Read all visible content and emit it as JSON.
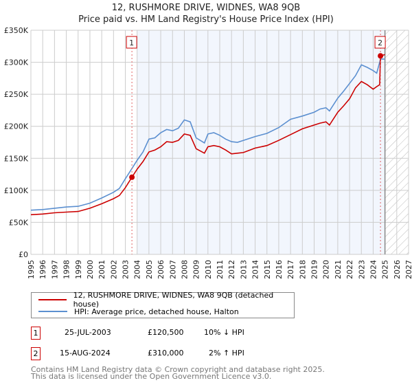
{
  "title": "12, RUSHMORE DRIVE, WIDNES, WA8 9QB",
  "subtitle": "Price paid vs. HM Land Registry's House Price Index (HPI)",
  "chart_data": {
    "type": "line",
    "title": "12, RUSHMORE DRIVE, WIDNES, WA8 9QB",
    "subtitle": "Price paid vs. HM Land Registry's House Price Index (HPI)",
    "xlim": [
      1995,
      2027
    ],
    "ylim": [
      0,
      350000
    ],
    "x_ticks": [
      "1995",
      "1996",
      "1997",
      "1998",
      "1999",
      "2000",
      "2001",
      "2002",
      "2003",
      "2004",
      "2005",
      "2006",
      "2007",
      "2008",
      "2009",
      "2010",
      "2011",
      "2012",
      "2013",
      "2014",
      "2015",
      "2016",
      "2017",
      "2018",
      "2019",
      "2020",
      "2021",
      "2022",
      "2023",
      "2024",
      "2025",
      "2026",
      "2027"
    ],
    "y_ticks": [
      {
        "v": 0,
        "label": "£0"
      },
      {
        "v": 50000,
        "label": "£50K"
      },
      {
        "v": 100000,
        "label": "£100K"
      },
      {
        "v": 150000,
        "label": "£150K"
      },
      {
        "v": 200000,
        "label": "£200K"
      },
      {
        "v": 250000,
        "label": "£250K"
      },
      {
        "v": 300000,
        "label": "£300K"
      },
      {
        "v": 350000,
        "label": "£350K"
      }
    ],
    "grid": true,
    "shaded_from": 2004.0,
    "forecast_hatch_from": 2025.0,
    "series": [
      {
        "name": "12, RUSHMORE DRIVE, WIDNES, WA8 9QB (detached house)",
        "color": "#cc0000",
        "x": [
          1995,
          1996,
          1997,
          1998,
          1999,
          2000,
          2001,
          2002,
          2002.5,
          2003,
          2003.56,
          2004,
          2004.5,
          2005,
          2005.5,
          2006,
          2006.5,
          2007,
          2007.5,
          2008,
          2008.5,
          2009,
          2009.7,
          2010,
          2010.5,
          2011,
          2011.5,
          2012,
          2012.5,
          2013,
          2014,
          2015,
          2016,
          2017,
          2018,
          2019,
          2019.5,
          2020,
          2020.3,
          2021,
          2021.5,
          2022,
          2022.5,
          2023,
          2023.5,
          2024,
          2024.3,
          2024.55,
          2024.62,
          2025
        ],
        "y": [
          62000,
          63000,
          65000,
          66000,
          67000,
          72000,
          79000,
          87000,
          92000,
          104000,
          120500,
          133000,
          145000,
          160000,
          163000,
          168000,
          176000,
          175000,
          178000,
          188000,
          186000,
          165000,
          158000,
          168000,
          170000,
          168000,
          163000,
          157000,
          158000,
          159000,
          166000,
          170000,
          178000,
          187000,
          196000,
          202000,
          205000,
          207000,
          202000,
          222000,
          232000,
          243000,
          260000,
          270000,
          265000,
          258000,
          262000,
          265000,
          310000,
          312000
        ]
      },
      {
        "name": "HPI: Average price, detached house, Halton",
        "color": "#5b8fd0",
        "x": [
          1995,
          1996,
          1997,
          1998,
          1999,
          2000,
          2001,
          2002,
          2002.5,
          2003,
          2003.56,
          2004,
          2004.5,
          2005,
          2005.5,
          2006,
          2006.5,
          2007,
          2007.5,
          2008,
          2008.5,
          2009,
          2009.7,
          2010,
          2010.5,
          2011,
          2011.5,
          2012,
          2012.5,
          2013,
          2014,
          2015,
          2016,
          2017,
          2018,
          2019,
          2019.5,
          2020,
          2020.3,
          2021,
          2021.5,
          2022,
          2022.5,
          2023,
          2023.5,
          2024,
          2024.3,
          2024.55,
          2024.62,
          2025
        ],
        "y": [
          69000,
          70000,
          72000,
          74000,
          75000,
          80000,
          88000,
          97000,
          103000,
          118000,
          134000,
          147000,
          160000,
          180000,
          182000,
          190000,
          195000,
          193000,
          197000,
          210000,
          207000,
          182000,
          174000,
          188000,
          190000,
          186000,
          180000,
          176000,
          175000,
          178000,
          184000,
          189000,
          198000,
          211000,
          216000,
          222000,
          227000,
          229000,
          224000,
          244000,
          255000,
          267000,
          279000,
          296000,
          292000,
          287000,
          283000,
          300000,
          305000,
          305000
        ]
      }
    ],
    "annotations": [
      {
        "label": "1",
        "x": 2003.56,
        "y": 120500
      },
      {
        "label": "2",
        "x": 2024.62,
        "y": 310000
      }
    ]
  },
  "legend": [
    {
      "label": "12, RUSHMORE DRIVE, WIDNES, WA8 9QB (detached house)",
      "color": "#cc0000"
    },
    {
      "label": "HPI: Average price, detached house, Halton",
      "color": "#5b8fd0"
    }
  ],
  "sales": [
    {
      "num": "1",
      "date": "25-JUL-2003",
      "price": "£120,500",
      "hpi": "10% ↓ HPI"
    },
    {
      "num": "2",
      "date": "15-AUG-2024",
      "price": "£310,000",
      "hpi": "2% ↑ HPI"
    }
  ],
  "footer": {
    "line1": "Contains HM Land Registry data © Crown copyright and database right 2025.",
    "line2": "This data is licensed under the Open Government Licence v3.0."
  }
}
